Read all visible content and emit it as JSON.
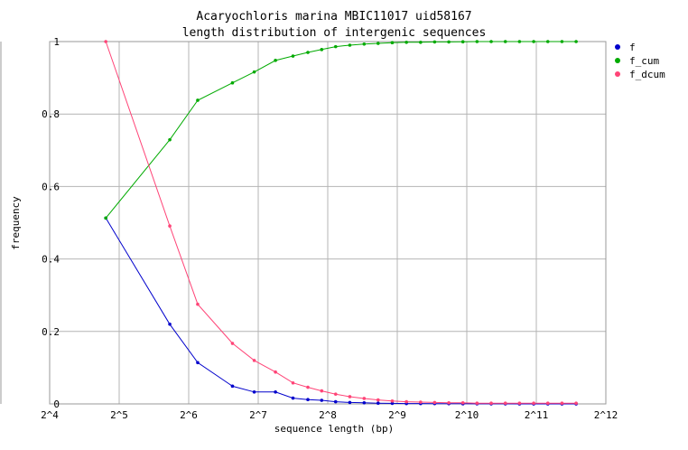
{
  "chart_data": {
    "type": "line",
    "title": "Acaryochloris marina MBIC11017 uid58167",
    "subtitle": "length distribution of intergenic sequences",
    "xlabel": "sequence length (bp)",
    "ylabel": "frequency",
    "x_scale": "log2",
    "xlim": [
      16,
      4096
    ],
    "ylim": [
      0,
      1
    ],
    "x_tick_labels": [
      "2^4",
      "2^5",
      "2^6",
      "2^7",
      "2^8",
      "2^9",
      "2^10",
      "2^11",
      "2^12"
    ],
    "y_tick_labels": [
      "0",
      "0.2",
      "0.4",
      "0.6",
      "0.8",
      "1"
    ],
    "grid": true,
    "legend_position": "right",
    "x": [
      28,
      53,
      70,
      99,
      123,
      152,
      181,
      210,
      241,
      277,
      319,
      368,
      423,
      487,
      561,
      646,
      743,
      856,
      985,
      1134,
      1306,
      1504,
      1732,
      1995,
      2297,
      2645,
      3046
    ],
    "series": [
      {
        "name": "f",
        "color": "#0000cc",
        "values": [
          0.513,
          0.22,
          0.114,
          0.049,
          0.033,
          0.033,
          0.016,
          0.012,
          0.01,
          0.006,
          0.004,
          0.003,
          0.002,
          0.0015,
          0.001,
          0.001,
          0.0008,
          0.0005,
          0.0004,
          0.0003,
          0.0002,
          0.0002,
          0.0001,
          0.0001,
          0.0001,
          0.0001,
          0.0001
        ]
      },
      {
        "name": "f_cum",
        "color": "#00aa00",
        "values": [
          0.513,
          0.729,
          0.838,
          0.886,
          0.916,
          0.948,
          0.96,
          0.97,
          0.978,
          0.986,
          0.99,
          0.993,
          0.995,
          0.997,
          0.998,
          0.998,
          0.999,
          0.999,
          0.9995,
          1.0,
          1.0,
          1.0,
          1.0,
          1.0,
          1.0,
          1.0,
          1.0
        ]
      },
      {
        "name": "f_dcum",
        "color": "#ff4477",
        "values": [
          1.0,
          0.491,
          0.275,
          0.167,
          0.12,
          0.088,
          0.058,
          0.046,
          0.036,
          0.027,
          0.02,
          0.015,
          0.011,
          0.008,
          0.006,
          0.005,
          0.004,
          0.003,
          0.003,
          0.002,
          0.002,
          0.002,
          0.002,
          0.002,
          0.002,
          0.002,
          0.002
        ]
      }
    ]
  }
}
